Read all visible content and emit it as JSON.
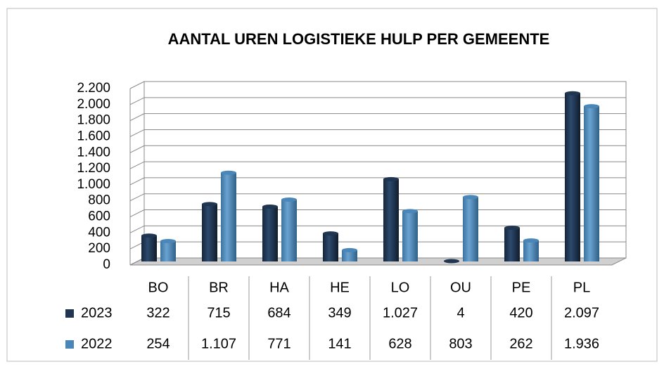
{
  "chart_data": {
    "type": "bar",
    "title": "AANTAL UREN LOGISTIEKE HULP PER GEMEENTE",
    "categories": [
      "BO",
      "BR",
      "HA",
      "HE",
      "LO",
      "OU",
      "PE",
      "PL"
    ],
    "series": [
      {
        "name": "2023",
        "color": "#1f3550",
        "values": [
          322,
          715,
          684,
          349,
          1027,
          4,
          420,
          2097
        ],
        "value_labels": [
          "322",
          "715",
          "684",
          "349",
          "1.027",
          "4",
          "420",
          "2.097"
        ]
      },
      {
        "name": "2022",
        "color": "#4a86b8",
        "values": [
          254,
          1107,
          771,
          141,
          628,
          803,
          262,
          1936
        ],
        "value_labels": [
          "254",
          "1.107",
          "771",
          "141",
          "628",
          "803",
          "262",
          "1.936"
        ]
      }
    ],
    "ylim": [
      0,
      2200
    ],
    "yticks": [
      0,
      200,
      400,
      600,
      800,
      {
        "value": 1000,
        "label": "1.000"
      },
      {
        "value": 1200,
        "label": "1.200"
      },
      {
        "value": 1400,
        "label": "1.400"
      },
      {
        "value": 1600,
        "label": "1.600"
      },
      {
        "value": 1800,
        "label": "1.800"
      },
      {
        "value": 2000,
        "label": "2.000"
      },
      {
        "value": 2200,
        "label": "2.200"
      }
    ],
    "grid": true
  }
}
